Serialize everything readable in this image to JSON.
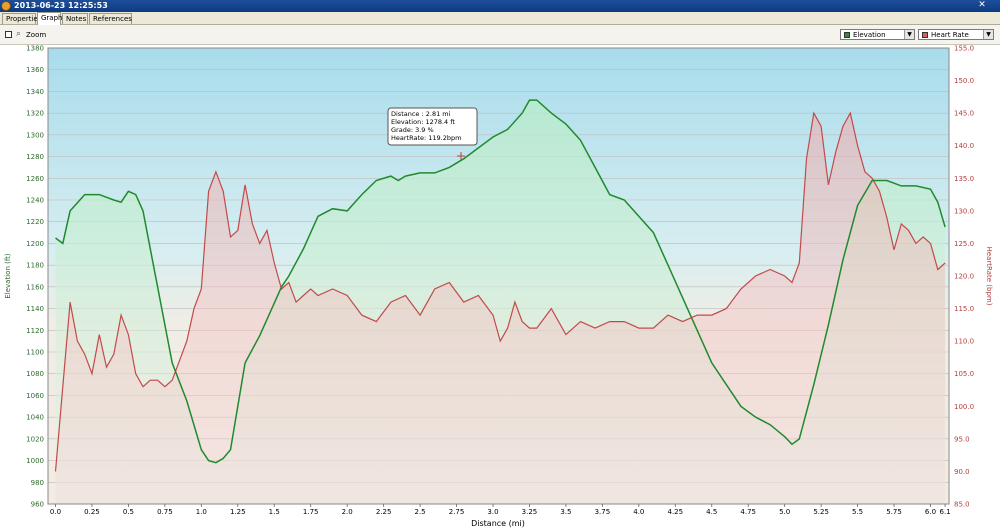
{
  "window": {
    "title": "2013-06-23 12:25:53",
    "close_glyph": "✕"
  },
  "tabs": [
    {
      "label": "Properties"
    },
    {
      "label": "Graph"
    },
    {
      "label": "Notes"
    },
    {
      "label": "References"
    }
  ],
  "toolbar": {
    "zoom_label": "Zoom",
    "zoom_checked": false,
    "series_select_1": {
      "label": "Elevation",
      "swatch": "#2e8b3a"
    },
    "series_select_2": {
      "label": "Heart Rate",
      "swatch": "#d95f5f"
    }
  },
  "icons": [
    "app-icon",
    "close-icon",
    "zoom-icon",
    "chevron-down-icon"
  ],
  "colors": {
    "elevation_line": "#1f8a2e",
    "heart_rate_line": "#c24a4a",
    "sky_top": "#a8dcec",
    "ground": "#f2ece4",
    "left_axis_text": "#2e6b2e",
    "right_axis_text": "#b04040"
  },
  "tooltip": {
    "lines": [
      "Distance : 2.81 mi",
      "Elevation: 1278.4 ft",
      "Grade: 3.9 %",
      "HeartRate: 119.2bpm"
    ]
  },
  "chart_data": {
    "type": "line",
    "xlabel": "Distance  (mi)",
    "ylabel_left": "Elevation (ft)",
    "ylabel_right": "HeartRate (bpm)",
    "xlim": [
      0,
      6.15
    ],
    "ylim_left": [
      960,
      1380
    ],
    "ylim_right": [
      85,
      155
    ],
    "grid": true,
    "x_ticks": [
      "0.0",
      "0.25",
      "0.5",
      "0.75",
      "1.0",
      "1.25",
      "1.5",
      "1.75",
      "2.0",
      "2.25",
      "2.5",
      "2.75",
      "3.0",
      "3.25",
      "3.5",
      "3.75",
      "4.0",
      "4.25",
      "4.5",
      "4.75",
      "5.0",
      "5.25",
      "5.5",
      "5.75",
      "6.0",
      "6.1"
    ],
    "y_left_ticks": [
      "960",
      "980",
      "1000",
      "1020",
      "1040",
      "1060",
      "1080",
      "1100",
      "1120",
      "1140",
      "1160",
      "1180",
      "1200",
      "1220",
      "1240",
      "1260",
      "1280",
      "1300",
      "1320",
      "1340",
      "1360",
      "1380"
    ],
    "y_right_ticks": [
      "85.0",
      "90.0",
      "95.0",
      "100.0",
      "105.0",
      "110.0",
      "115.0",
      "120.0",
      "125.0",
      "130.0",
      "135.0",
      "140.0",
      "145.0",
      "150.0",
      "155.0"
    ],
    "series": [
      {
        "name": "Elevation",
        "axis": "left",
        "x": [
          0,
          0.05,
          0.1,
          0.2,
          0.3,
          0.4,
          0.45,
          0.5,
          0.55,
          0.6,
          0.7,
          0.8,
          0.9,
          1.0,
          1.05,
          1.1,
          1.15,
          1.2,
          1.3,
          1.4,
          1.5,
          1.55,
          1.6,
          1.7,
          1.75,
          1.8,
          1.9,
          2.0,
          2.1,
          2.2,
          2.3,
          2.35,
          2.4,
          2.5,
          2.6,
          2.7,
          2.8,
          2.9,
          3.0,
          3.1,
          3.2,
          3.25,
          3.3,
          3.4,
          3.5,
          3.6,
          3.7,
          3.8,
          3.9,
          4.0,
          4.1,
          4.2,
          4.3,
          4.4,
          4.5,
          4.6,
          4.7,
          4.8,
          4.9,
          5.0,
          5.05,
          5.1,
          5.2,
          5.3,
          5.4,
          5.5,
          5.6,
          5.7,
          5.8,
          5.9,
          6.0,
          6.05,
          6.1
        ],
        "values": [
          1205,
          1200,
          1230,
          1245,
          1245,
          1240,
          1238,
          1248,
          1245,
          1230,
          1160,
          1090,
          1055,
          1010,
          1000,
          998,
          1002,
          1010,
          1090,
          1115,
          1145,
          1160,
          1170,
          1195,
          1210,
          1225,
          1232,
          1230,
          1245,
          1258,
          1262,
          1258,
          1262,
          1265,
          1265,
          1270,
          1278,
          1288,
          1298,
          1305,
          1320,
          1332,
          1332,
          1320,
          1310,
          1295,
          1270,
          1245,
          1240,
          1225,
          1210,
          1180,
          1150,
          1120,
          1090,
          1070,
          1050,
          1040,
          1033,
          1022,
          1015,
          1020,
          1070,
          1125,
          1185,
          1235,
          1258,
          1258,
          1253,
          1253,
          1250,
          1238,
          1215
        ]
      },
      {
        "name": "Heart Rate",
        "axis": "right",
        "x": [
          0,
          0.05,
          0.1,
          0.15,
          0.2,
          0.25,
          0.3,
          0.35,
          0.4,
          0.45,
          0.5,
          0.55,
          0.6,
          0.65,
          0.7,
          0.75,
          0.8,
          0.85,
          0.9,
          0.95,
          1.0,
          1.05,
          1.1,
          1.15,
          1.2,
          1.25,
          1.3,
          1.35,
          1.4,
          1.45,
          1.5,
          1.55,
          1.6,
          1.65,
          1.7,
          1.75,
          1.8,
          1.9,
          2.0,
          2.1,
          2.2,
          2.3,
          2.4,
          2.5,
          2.6,
          2.7,
          2.8,
          2.9,
          3.0,
          3.05,
          3.1,
          3.15,
          3.2,
          3.25,
          3.3,
          3.4,
          3.5,
          3.6,
          3.7,
          3.8,
          3.9,
          4.0,
          4.1,
          4.2,
          4.3,
          4.4,
          4.5,
          4.6,
          4.7,
          4.8,
          4.9,
          5.0,
          5.05,
          5.1,
          5.15,
          5.2,
          5.25,
          5.3,
          5.35,
          5.4,
          5.45,
          5.5,
          5.55,
          5.6,
          5.65,
          5.7,
          5.75,
          5.8,
          5.85,
          5.9,
          5.95,
          6.0,
          6.05,
          6.1
        ],
        "values": [
          90,
          103,
          116,
          110,
          108,
          105,
          111,
          106,
          108,
          114,
          111,
          105,
          103,
          104,
          104,
          103,
          104,
          107,
          110,
          115,
          118,
          133,
          136,
          133,
          126,
          127,
          134,
          128,
          125,
          127,
          122,
          118,
          119,
          116,
          117,
          118,
          117,
          118,
          117,
          114,
          113,
          116,
          117,
          114,
          118,
          119,
          116,
          117,
          114,
          110,
          112,
          116,
          113,
          112,
          112,
          115,
          111,
          113,
          112,
          113,
          113,
          112,
          112,
          114,
          113,
          114,
          114,
          115,
          118,
          120,
          121,
          120,
          119,
          122,
          138,
          145,
          143,
          134,
          139,
          143,
          145,
          140,
          136,
          135,
          133,
          129,
          124,
          128,
          127,
          125,
          126,
          125,
          121,
          122
        ]
      }
    ]
  }
}
